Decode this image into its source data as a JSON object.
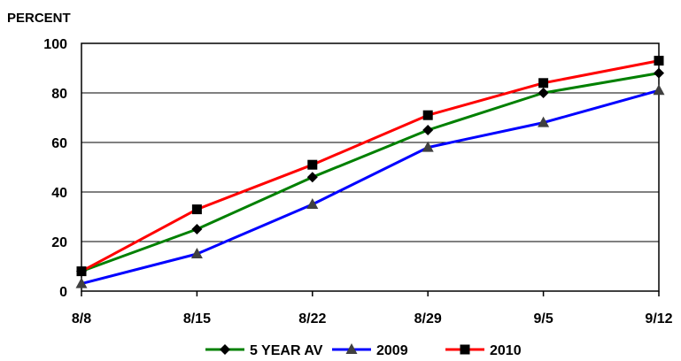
{
  "chart_data": {
    "type": "line",
    "title": "",
    "ylabel": "PERCENT",
    "xlabel": "",
    "categories": [
      "8/8",
      "8/15",
      "8/22",
      "8/29",
      "9/5",
      "9/12"
    ],
    "ylim": [
      0,
      100
    ],
    "yticks": [
      0,
      20,
      40,
      60,
      80,
      100
    ],
    "grid": true,
    "legend_position": "bottom",
    "series": [
      {
        "name": "5 YEAR AV",
        "marker": "diamond",
        "color": "#008000",
        "values": [
          8,
          25,
          46,
          65,
          80,
          88
        ]
      },
      {
        "name": "2009",
        "marker": "triangle",
        "color": "#0000ff",
        "values": [
          3,
          15,
          35,
          58,
          68,
          81
        ]
      },
      {
        "name": "2010",
        "marker": "square",
        "color": "#ff0000",
        "values": [
          8,
          33,
          51,
          71,
          84,
          93
        ]
      }
    ]
  }
}
